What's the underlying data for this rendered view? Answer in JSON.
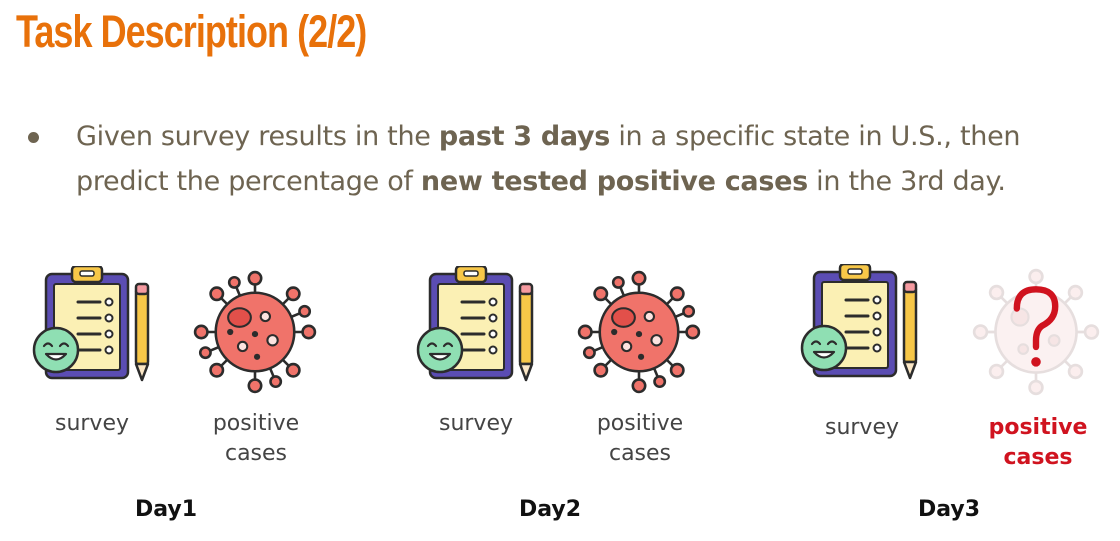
{
  "title": "Task Description (2/2)",
  "bullet": {
    "t1": "Given survey results in the ",
    "b1": "past 3 days",
    "t2": " in a specific state in U.S., then predict the percentage of ",
    "b2": "new tested positive cases",
    "t3": " in the 3rd day."
  },
  "days": [
    {
      "day": "Day1",
      "survey": "survey",
      "cases_l1": "positive",
      "cases_l2": "cases"
    },
    {
      "day": "Day2",
      "survey": "survey",
      "cases_l1": "positive",
      "cases_l2": "cases"
    },
    {
      "day": "Day3",
      "survey": "survey",
      "cases_l1": "positive",
      "cases_l2": "cases"
    }
  ],
  "colors": {
    "title": "#e8710a",
    "body_text": "#6e6451",
    "virus": "#f0736a",
    "unknown": "#d0131f"
  }
}
